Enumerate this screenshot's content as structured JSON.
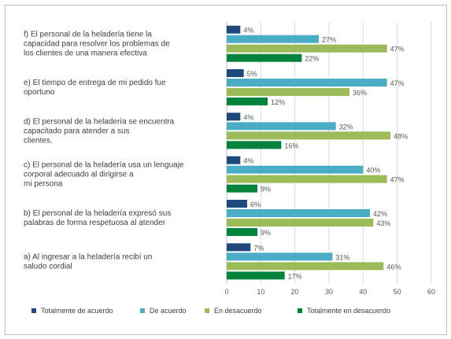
{
  "chart_data": {
    "type": "bar",
    "orientation": "horizontal",
    "grid": true,
    "legend_position": "bottom",
    "xlim": [
      0,
      60
    ],
    "x_ticks": [
      "0",
      "10",
      "20",
      "30",
      "40",
      "50",
      "60"
    ],
    "categories": [
      [
        "f) El personal de la heladería tiene la",
        "capacidad para resolver los problemas de",
        "los clientes de una manera efectiva"
      ],
      [
        "e) El tiempo de entrega de mi pedido fue",
        "oportuno"
      ],
      [
        "d) El personal de la heladería se encuentra",
        "capacitado para atender a sus",
        "clientes."
      ],
      [
        "c) El personal de la heladería usa un lenguaje",
        "corporal adecuado al dirigirse a",
        "mi persona"
      ],
      [
        "b) El personal de la heladería expresó sus",
        "palabras de forma respetuosa al atender"
      ],
      [
        "a) Al ingresar a la heladería recibí un",
        "saludo cordial"
      ]
    ],
    "series": [
      {
        "name": "Totalmente de acuerdo",
        "color": "#1f497d",
        "values": [
          4,
          5,
          4,
          4,
          6,
          7
        ]
      },
      {
        "name": "De acuerdo",
        "color": "#4bacc6",
        "values": [
          27,
          47,
          32,
          40,
          42,
          31
        ]
      },
      {
        "name": "En desacuerdo",
        "color": "#9bbb59",
        "values": [
          47,
          36,
          48,
          47,
          43,
          46
        ]
      },
      {
        "name": "Totalmente en desacuerdo",
        "color": "#00843d",
        "values": [
          22,
          12,
          16,
          9,
          9,
          17
        ]
      }
    ],
    "data_labels": [
      [
        "4%",
        "27%",
        "47%",
        "22%"
      ],
      [
        "5%",
        "47%",
        "36%",
        "12%"
      ],
      [
        "4%",
        "32%",
        "48%",
        "16%"
      ],
      [
        "4%",
        "40%",
        "47%",
        "9%"
      ],
      [
        "6%",
        "42%",
        "43%",
        "9%"
      ],
      [
        "7%",
        "31%",
        "46%",
        "17%"
      ]
    ]
  }
}
